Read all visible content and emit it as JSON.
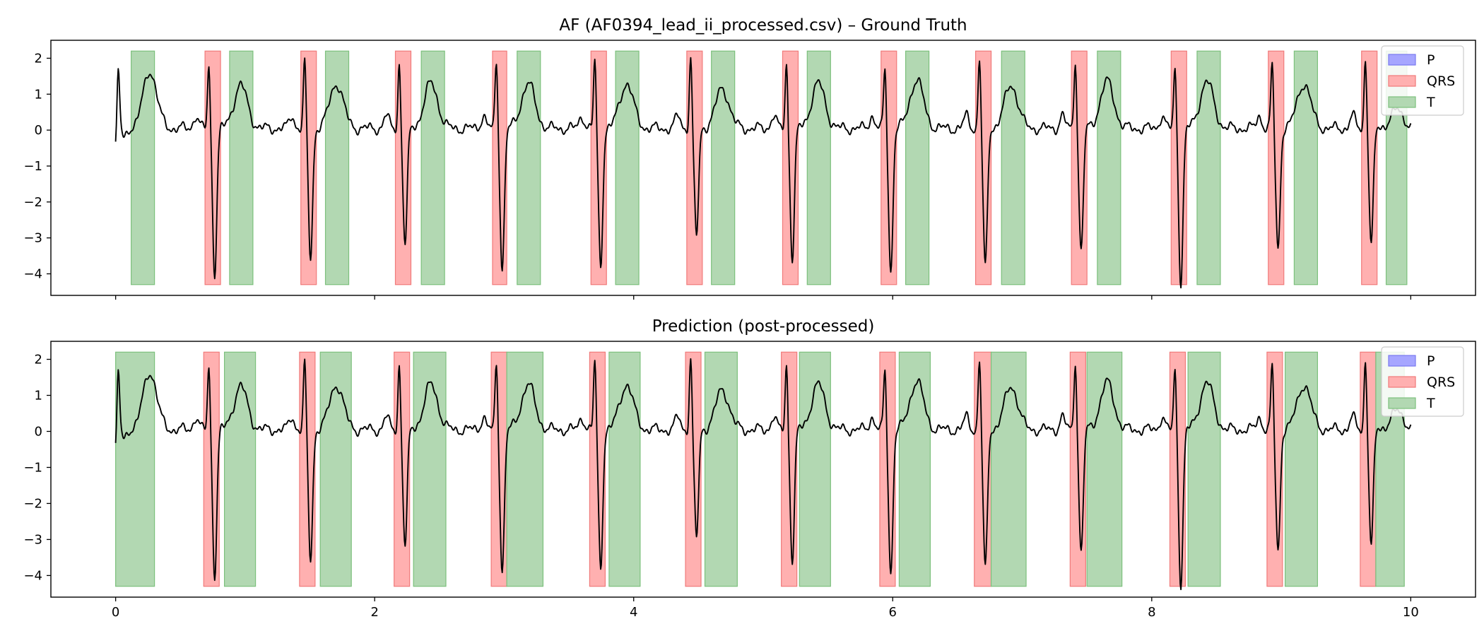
{
  "chart_data": [
    {
      "type": "line",
      "title": "AF (AF0394_lead_ii_processed.csv) – Ground Truth",
      "xlabel": "",
      "ylabel": "",
      "xlim": [
        -0.5,
        10.5
      ],
      "ylim": [
        -4.6,
        2.5
      ],
      "xticks": [
        0,
        2,
        4,
        6,
        8,
        10
      ],
      "yticks": [
        2,
        1,
        0,
        -1,
        -2,
        -3,
        -4
      ],
      "show_x_tick_labels": false,
      "grid": false,
      "legend": {
        "placement": "top-right",
        "entries": [
          "P",
          "QRS",
          "T"
        ]
      },
      "colors": {
        "P": "#0000ff",
        "QRS": "#ff0000",
        "T": "#008000",
        "signal": "#000000"
      },
      "band_range": [
        -4.3,
        2.2
      ],
      "regions": {
        "P": [],
        "QRS": [
          [
            0.69,
            0.81
          ],
          [
            1.43,
            1.55
          ],
          [
            2.16,
            2.28
          ],
          [
            2.91,
            3.02
          ],
          [
            3.67,
            3.79
          ],
          [
            4.41,
            4.53
          ],
          [
            5.15,
            5.27
          ],
          [
            5.91,
            6.03
          ],
          [
            6.64,
            6.76
          ],
          [
            7.38,
            7.5
          ],
          [
            8.15,
            8.27
          ],
          [
            8.9,
            9.02
          ],
          [
            9.62,
            9.74
          ]
        ],
        "T": [
          [
            0.12,
            0.3
          ],
          [
            0.88,
            1.06
          ],
          [
            1.62,
            1.8
          ],
          [
            2.36,
            2.54
          ],
          [
            3.1,
            3.28
          ],
          [
            3.86,
            4.04
          ],
          [
            4.6,
            4.78
          ],
          [
            5.34,
            5.52
          ],
          [
            6.1,
            6.28
          ],
          [
            6.84,
            7.02
          ],
          [
            7.58,
            7.76
          ],
          [
            8.35,
            8.53
          ],
          [
            9.1,
            9.28
          ],
          [
            9.81,
            9.97
          ]
        ]
      },
      "signal": {
        "duration": 10,
        "r_peaks": [
          0.02,
          0.72,
          1.46,
          2.19,
          2.94,
          3.7,
          4.44,
          5.18,
          5.94,
          6.67,
          7.41,
          8.18,
          8.93,
          9.65
        ],
        "r_amp": [
          2.0,
          1.9,
          2.0,
          1.95,
          2.0,
          2.0,
          2.1,
          1.95,
          1.8,
          2.1,
          2.1,
          1.85,
          1.9,
          2.1
        ],
        "s_depth": [
          -0.3,
          -4.0,
          -3.6,
          -3.2,
          -3.9,
          -3.8,
          -3.0,
          -3.6,
          -4.0,
          -3.9,
          -3.4,
          -4.3,
          -3.4,
          -3.2
        ],
        "t_amp": [
          1.7,
          1.3,
          1.35,
          1.35,
          1.35,
          1.35,
          1.2,
          1.35,
          1.45,
          1.3,
          1.4,
          1.4,
          1.35,
          0.6
        ],
        "start_value": -0.65,
        "end_value": 0.0
      }
    },
    {
      "type": "line",
      "title": "Prediction (post-processed)",
      "xlabel": "",
      "ylabel": "",
      "xlim": [
        -0.5,
        10.5
      ],
      "ylim": [
        -4.6,
        2.5
      ],
      "xticks": [
        0,
        2,
        4,
        6,
        8,
        10
      ],
      "yticks": [
        2,
        1,
        0,
        -1,
        -2,
        -3,
        -4
      ],
      "show_x_tick_labels": true,
      "grid": false,
      "legend": {
        "placement": "top-right",
        "entries": [
          "P",
          "QRS",
          "T"
        ]
      },
      "colors": {
        "P": "#0000ff",
        "QRS": "#ff0000",
        "T": "#008000",
        "signal": "#000000"
      },
      "band_range": [
        -4.3,
        2.2
      ],
      "regions": {
        "P": [],
        "QRS": [
          [
            0.68,
            0.8
          ],
          [
            1.42,
            1.54
          ],
          [
            2.15,
            2.27
          ],
          [
            2.9,
            3.02
          ],
          [
            3.66,
            3.78
          ],
          [
            4.4,
            4.52
          ],
          [
            5.14,
            5.26
          ],
          [
            5.9,
            6.02
          ],
          [
            6.63,
            6.76
          ],
          [
            7.37,
            7.49
          ],
          [
            8.14,
            8.26
          ],
          [
            8.89,
            9.01
          ],
          [
            9.61,
            9.73
          ]
        ],
        "T": [
          [
            0.0,
            0.3
          ],
          [
            0.84,
            1.08
          ],
          [
            1.58,
            1.82
          ],
          [
            2.3,
            2.55
          ],
          [
            3.02,
            3.3
          ],
          [
            3.81,
            4.05
          ],
          [
            4.55,
            4.8
          ],
          [
            5.28,
            5.52
          ],
          [
            6.05,
            6.29
          ],
          [
            6.76,
            7.03
          ],
          [
            7.5,
            7.77
          ],
          [
            8.28,
            8.53
          ],
          [
            9.03,
            9.28
          ],
          [
            9.73,
            9.95
          ]
        ]
      },
      "signal": {
        "duration": 10,
        "r_peaks": [
          0.02,
          0.72,
          1.46,
          2.19,
          2.94,
          3.7,
          4.44,
          5.18,
          5.94,
          6.67,
          7.41,
          8.18,
          8.93,
          9.65
        ],
        "r_amp": [
          2.0,
          1.9,
          2.0,
          1.95,
          2.0,
          2.0,
          2.1,
          1.95,
          1.8,
          2.1,
          2.1,
          1.85,
          1.9,
          2.1
        ],
        "s_depth": [
          -0.3,
          -4.0,
          -3.6,
          -3.2,
          -3.9,
          -3.8,
          -3.0,
          -3.6,
          -4.0,
          -3.9,
          -3.4,
          -4.3,
          -3.4,
          -3.2
        ],
        "t_amp": [
          1.7,
          1.3,
          1.35,
          1.35,
          1.35,
          1.35,
          1.2,
          1.35,
          1.45,
          1.3,
          1.4,
          1.4,
          1.35,
          0.6
        ],
        "start_value": -0.65,
        "end_value": 0.0
      }
    }
  ]
}
